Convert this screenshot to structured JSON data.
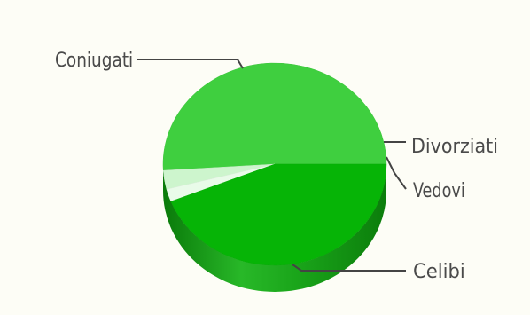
{
  "chart_data": {
    "type": "pie",
    "title": "",
    "categories": [
      "Coniugati",
      "Divorziati",
      "Vedovi",
      "Celibi"
    ],
    "values": [
      51,
      3,
      2,
      44
    ],
    "colors": {
      "Coniugati": "#3fcf3f",
      "Divorziati": "#cdf5cd",
      "Vedovi": "#e9fbe9",
      "Celibi": "#06b406"
    },
    "legend": "none",
    "three_d": true
  }
}
